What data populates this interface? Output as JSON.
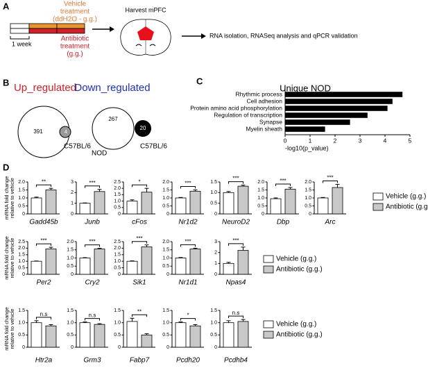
{
  "labels": {
    "a": "A",
    "b": "B",
    "c": "C",
    "d": "D"
  },
  "diagram": {
    "vehicle": [
      "Vehicle",
      "treatment",
      "(ddH2O - g.g.)"
    ],
    "antibiotic": [
      "Antibiotic",
      "treatment",
      "(g.g.)"
    ],
    "duration": "1 week",
    "harvest": "Harvest mPFC",
    "analysis": "RNA isolation, RNASeq analysis and qPCR validation"
  },
  "venn": {
    "up": {
      "title": "Up_regulated",
      "main": "391",
      "overlap": "4",
      "other": "C57BL/6"
    },
    "down": {
      "title": "Down_regulated",
      "main": "267",
      "other_count": "20",
      "main_label": "NOD",
      "other": "C57BL/6"
    }
  },
  "chart_data": [
    {
      "type": "hbar",
      "title": "Unique NOD",
      "color": "#000000",
      "categories": [
        "Rhythmic process",
        "Cell adhesion",
        "Protein amino acid phosphorylation",
        "Regulation of transcription",
        "Synapse",
        "Myelin sheath"
      ],
      "values": [
        4.7,
        4.3,
        4.1,
        3.3,
        2.6,
        1.6
      ],
      "xlim": [
        0,
        5
      ],
      "xticks": [
        0,
        1,
        2,
        3,
        4,
        5
      ],
      "xlabel": "-log10(p_value)"
    },
    {
      "type": "bar",
      "ylabel": [
        "mRNA fold change",
        "relative to vehicle"
      ],
      "series": [
        {
          "name": "Vehicle (g.g.)",
          "color": "#ffffff"
        },
        {
          "name": "Antibiotic (g.g.)",
          "color": "#c8c8c8"
        }
      ],
      "panels": [
        {
          "title": "Gadd45b",
          "values": [
            1.0,
            1.5
          ],
          "errors": [
            0.05,
            0.1
          ],
          "significance": "**",
          "ylim": [
            0,
            2
          ],
          "yticks": [
            0,
            0.5,
            {
              "value": 1,
              "label": "1.0"
            },
            1.5,
            {
              "value": 2,
              "label": "2.0"
            }
          ]
        },
        {
          "title": "Junb",
          "values": [
            1.0,
            2.1
          ],
          "errors": [
            0.03,
            0.2
          ],
          "significance": "***",
          "ylim": [
            0,
            3
          ],
          "yticks": [
            0,
            1,
            2,
            3
          ]
        },
        {
          "title": "cFos",
          "values": [
            1.0,
            1.7
          ],
          "errors": [
            0.1,
            0.3
          ],
          "significance": "*",
          "ylim": [
            0,
            2.5
          ],
          "yticks": [
            0,
            0.5,
            {
              "value": 1,
              "label": "1.0"
            },
            1.5,
            {
              "value": 2,
              "label": "2.0"
            },
            2.5
          ]
        },
        {
          "title": "Nr1d2",
          "values": [
            1.0,
            1.42
          ],
          "errors": [
            0.03,
            0.08
          ],
          "significance": "***",
          "ylim": [
            0,
            2
          ],
          "yticks": [
            0,
            0.5,
            {
              "value": 1,
              "label": "1.0"
            },
            1.5,
            {
              "value": 2,
              "label": "2.0"
            }
          ]
        },
        {
          "title": "NeuroD2",
          "values": [
            1.0,
            1.3
          ],
          "errors": [
            0.05,
            0.05
          ],
          "significance": "***",
          "ylim": [
            0,
            1.5
          ],
          "yticks": [
            0,
            0.5,
            {
              "value": 1,
              "label": "1.0"
            },
            1.5
          ]
        },
        {
          "title": "Dbp",
          "values": [
            0.95,
            1.55
          ],
          "errors": [
            0.05,
            0.1
          ],
          "significance": "***",
          "ylim": [
            0,
            2
          ],
          "yticks": [
            0,
            0.5,
            {
              "value": 1,
              "label": "1.0"
            },
            1.5,
            {
              "value": 2,
              "label": "2.0"
            }
          ]
        },
        {
          "title": "Arc",
          "values": [
            1.0,
            1.65
          ],
          "errors": [
            0.03,
            0.2
          ],
          "significance": "***",
          "ylim": [
            0,
            2
          ],
          "yticks": [
            0,
            0.5,
            {
              "value": 1,
              "label": "1.0"
            },
            1.5,
            {
              "value": 2,
              "label": "2.0"
            }
          ]
        }
      ]
    },
    {
      "type": "bar",
      "ylabel": [
        "mRNA fold change",
        "relative to vehicle"
      ],
      "series": [
        {
          "name": "Vehicle (g.g.)",
          "color": "#ffffff"
        },
        {
          "name": "Antibiotic (g.g.)",
          "color": "#c8c8c8"
        }
      ],
      "panels": [
        {
          "title": "Per2",
          "values": [
            1.0,
            1.95
          ],
          "errors": [
            0.02,
            0.12
          ],
          "significance": "***",
          "ylim": [
            0,
            2.5
          ],
          "yticks": [
            0,
            0.5,
            {
              "value": 1,
              "label": "1.0"
            },
            1.5,
            {
              "value": 2,
              "label": "2.0"
            },
            2.5
          ]
        },
        {
          "title": "Cry2",
          "values": [
            1.0,
            1.55
          ],
          "errors": [
            0.02,
            0.04
          ],
          "significance": "***",
          "ylim": [
            0,
            2
          ],
          "yticks": [
            0,
            0.5,
            {
              "value": 1,
              "label": "1.0"
            },
            1.5,
            {
              "value": 2,
              "label": "2.0"
            }
          ]
        },
        {
          "title": "Sik1",
          "values": [
            1.0,
            2.1
          ],
          "errors": [
            0.03,
            0.15
          ],
          "significance": "***",
          "ylim": [
            0,
            2.5
          ],
          "yticks": [
            0,
            0.5,
            {
              "value": 1,
              "label": "1.0"
            },
            1.5,
            {
              "value": 2,
              "label": "2.0"
            },
            2.5
          ]
        },
        {
          "title": "Nr1d1",
          "values": [
            1.0,
            1.55
          ],
          "errors": [
            0.03,
            0.05
          ],
          "significance": "***",
          "ylim": [
            0,
            2
          ],
          "yticks": [
            0,
            0.5,
            {
              "value": 1,
              "label": "1.0"
            },
            1.5,
            {
              "value": 2,
              "label": "2.0"
            }
          ]
        },
        {
          "title": "Npas4",
          "values": [
            1.0,
            2.2
          ],
          "errors": [
            0.1,
            0.3
          ],
          "significance": "***",
          "ylim": [
            0,
            3
          ],
          "yticks": [
            0,
            1,
            2,
            3
          ]
        }
      ]
    },
    {
      "type": "bar",
      "ylabel": [
        "mRNA fold change",
        "relative to vehicle"
      ],
      "series": [
        {
          "name": "Vehicle (g.g.)",
          "color": "#ffffff"
        },
        {
          "name": "Antibiotic (g.g.)",
          "color": "#c8c8c8"
        }
      ],
      "panels": [
        {
          "title": "Htr2a",
          "values": [
            1.0,
            0.87
          ],
          "errors": [
            0.08,
            0.05
          ],
          "significance": "n.s",
          "ylim": [
            0,
            1.5
          ],
          "yticks": [
            0,
            0.5,
            {
              "value": 1,
              "label": "1.0"
            },
            1.5
          ]
        },
        {
          "title": "Grm3",
          "values": [
            1.0,
            0.93
          ],
          "errors": [
            0.03,
            0.03
          ],
          "significance": "n.s",
          "ylim": [
            0,
            1.5
          ],
          "yticks": [
            0,
            0.5,
            {
              "value": 1,
              "label": "1.0"
            },
            1.5
          ]
        },
        {
          "title": "Fabp7",
          "values": [
            1.05,
            0.5
          ],
          "errors": [
            0.13,
            0.05
          ],
          "significance": "**",
          "ylim": [
            0,
            1.5
          ],
          "yticks": [
            0,
            0.5,
            {
              "value": 1,
              "label": "1.0"
            },
            1.5
          ]
        },
        {
          "title": "Pcdh20",
          "values": [
            1.0,
            0.87
          ],
          "errors": [
            0.03,
            0.05
          ],
          "significance": "*",
          "ylim": [
            0,
            1.5
          ],
          "yticks": [
            0,
            0.5,
            {
              "value": 1,
              "label": "1.0"
            },
            1.5
          ]
        },
        {
          "title": "Pcdhb4",
          "values": [
            1.0,
            1.05
          ],
          "errors": [
            0.08,
            0.08
          ],
          "significance": "n.s",
          "ylim": [
            0,
            1.5
          ],
          "yticks": [
            0,
            0.5,
            {
              "value": 1,
              "label": "1.0"
            },
            1.5
          ]
        }
      ]
    }
  ]
}
